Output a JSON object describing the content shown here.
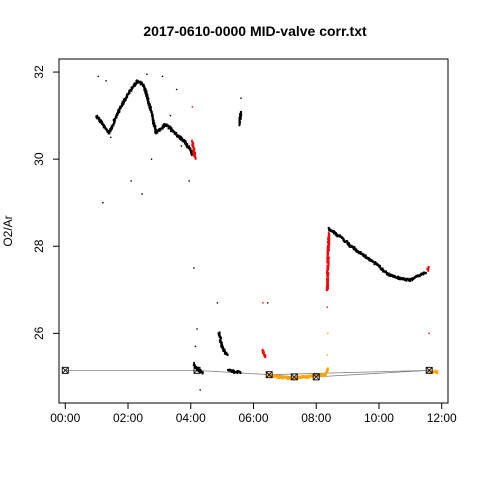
{
  "chart_data": {
    "type": "scatter",
    "title": "2017-0610-0000 MID-valve corr.txt",
    "xlabel": "",
    "ylabel": "O2/Ar",
    "xlim": [
      -0.2,
      12.2
    ],
    "ylim": [
      24.4,
      32.3
    ],
    "x_ticks": [
      0,
      2,
      4,
      6,
      8,
      10,
      12
    ],
    "x_tick_labels": [
      "00:00",
      "02:00",
      "04:00",
      "06:00",
      "08:00",
      "10:00",
      "12:00"
    ],
    "y_ticks": [
      26,
      28,
      30,
      32
    ],
    "y_tick_labels": [
      "26",
      "28",
      "30",
      "32"
    ],
    "grid": false,
    "legend": "none",
    "colors": {
      "main": "#000000",
      "flagged": "#ff0000",
      "standard": "#ffa500",
      "reference_line": "#808080"
    },
    "series": [
      {
        "color": "#000000",
        "segments": [
          {
            "x": [
              1.0,
              1.2,
              1.4,
              1.7,
              2.0,
              2.3,
              2.5,
              2.7,
              2.9,
              3.2,
              3.5,
              3.8,
              4.0,
              4.05
            ],
            "y": [
              31.0,
              30.8,
              30.6,
              31.1,
              31.5,
              31.8,
              31.7,
              31.2,
              30.6,
              30.8,
              30.6,
              30.4,
              30.2,
              30.1
            ]
          },
          {
            "x": [
              4.1,
              4.25,
              4.4
            ],
            "y": [
              25.3,
              25.15,
              25.1
            ]
          },
          {
            "x": [
              4.9,
              5.0,
              5.1,
              5.2
            ],
            "y": [
              26.0,
              25.7,
              25.55,
              25.5
            ]
          },
          {
            "x": [
              5.2,
              5.4,
              5.6
            ],
            "y": [
              25.15,
              25.12,
              25.1
            ]
          },
          {
            "x": [
              5.55,
              5.6
            ],
            "y": [
              30.8,
              31.1
            ]
          },
          {
            "x": [
              8.4,
              8.5,
              8.8,
              9.1,
              9.5,
              9.9,
              10.3,
              10.7,
              11.0,
              11.2,
              11.5
            ],
            "y": [
              28.4,
              28.35,
              28.2,
              28.0,
              27.8,
              27.6,
              27.35,
              27.25,
              27.22,
              27.3,
              27.4
            ]
          }
        ],
        "scatter": {
          "x": [
            1.05,
            1.2,
            1.3,
            1.45,
            2.1,
            2.45,
            2.6,
            2.75,
            3.1,
            3.35,
            3.55,
            3.7,
            3.95,
            4.1,
            4.15,
            4.2,
            4.3,
            4.85,
            5.6,
            6.45
          ],
          "y": [
            31.9,
            29.0,
            31.8,
            30.5,
            29.5,
            29.2,
            31.95,
            30.0,
            31.9,
            31.0,
            31.6,
            30.3,
            29.5,
            27.5,
            25.7,
            26.1,
            24.7,
            26.7,
            31.4,
            26.7
          ]
        }
      },
      {
        "color": "#ff0000",
        "segments": [
          {
            "x": [
              4.05,
              4.1,
              4.15
            ],
            "y": [
              30.4,
              30.2,
              30.0
            ]
          },
          {
            "x": [
              6.3,
              6.35,
              6.4
            ],
            "y": [
              25.6,
              25.5,
              25.45
            ]
          },
          {
            "x": [
              8.35,
              8.38,
              8.4
            ],
            "y": [
              27.0,
              27.8,
              28.3
            ]
          },
          {
            "x": [
              11.55,
              11.6
            ],
            "y": [
              27.45,
              27.55
            ]
          }
        ],
        "scatter": {
          "x": [
            4.05,
            6.3,
            8.35,
            11.6
          ],
          "y": [
            31.2,
            26.7,
            26.6,
            26.0
          ]
        }
      },
      {
        "color": "#ffa500",
        "segments": [
          {
            "x": [
              6.45,
              6.8,
              7.2,
              7.6,
              8.0,
              8.3,
              8.38
            ],
            "y": [
              25.05,
              25.0,
              24.97,
              25.0,
              25.02,
              25.05,
              25.2
            ]
          },
          {
            "x": [
              11.6,
              11.75,
              11.9
            ],
            "y": [
              25.12,
              25.12,
              25.1
            ]
          }
        ],
        "scatter": {
          "x": [
            8.35,
            8.37
          ],
          "y": [
            25.5,
            26.0
          ]
        }
      }
    ],
    "reference_line": {
      "color": "#808080",
      "x": [
        0.0,
        4.2,
        6.5,
        7.3,
        8.0,
        11.6,
        6.5
      ],
      "y": [
        25.15,
        25.15,
        25.05,
        25.0,
        25.0,
        25.15,
        25.05
      ]
    },
    "markers": {
      "symbol": "boxed-x",
      "x": [
        0.0,
        4.2,
        6.5,
        7.3,
        8.0,
        11.6
      ],
      "y": [
        25.15,
        25.15,
        25.05,
        25.0,
        25.0,
        25.15
      ]
    }
  }
}
